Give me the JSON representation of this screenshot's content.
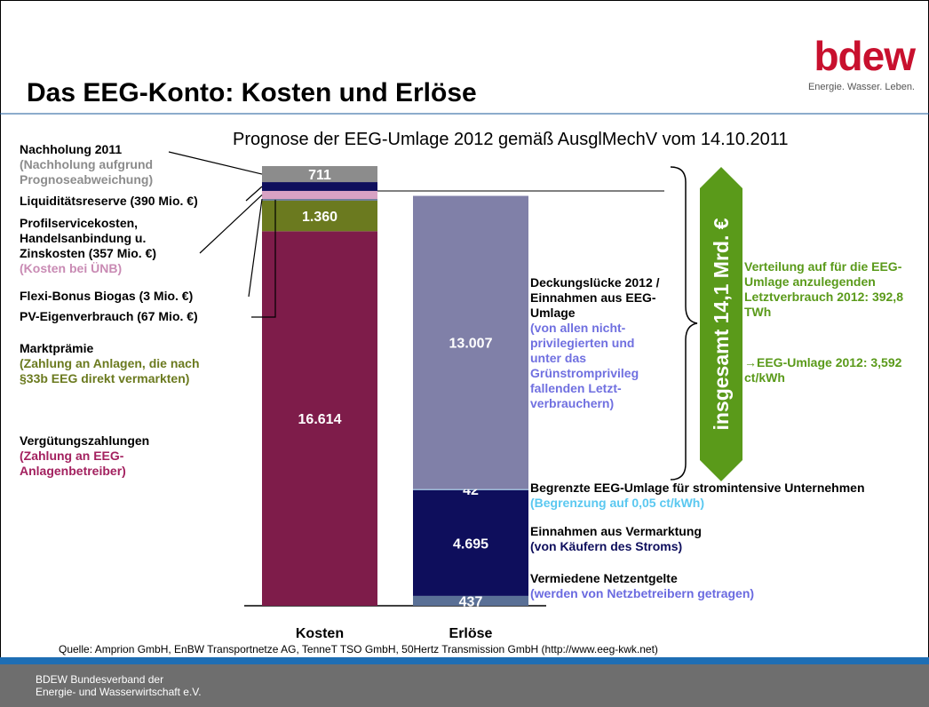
{
  "header": {
    "title": "Das EEG-Konto: Kosten und Erlöse",
    "logo": "bdew",
    "tagline": "Energie. Wasser. Leben."
  },
  "chart_data": {
    "type": "stacked-bar",
    "subtitle": "Prognose der EEG-Umlage 2012 gemäß AusglMechV vom 14.10.2011",
    "categories": [
      "Kosten",
      "Erlöse"
    ],
    "series": [
      {
        "name": "Vergütungszahlungen",
        "note": "(Zahlung an EEG-Anlagenbetreiber)",
        "color": "#7e1c4a",
        "note_color": "#a3215f",
        "values": [
          16614,
          null
        ],
        "value_labels": [
          "16.614",
          null
        ]
      },
      {
        "name": "Marktprämie",
        "note": "(Zahlung an Anlagen, die nach §33b EEG direkt vermarkten)",
        "color": "#6b7a1f",
        "note_color": "#6b7a1f",
        "values": [
          1360,
          null
        ],
        "value_labels": [
          "1.360",
          null
        ]
      },
      {
        "name": "PV-Eigenverbrauch (67 Mio. €)",
        "color": "#5a7096",
        "values": [
          67,
          null
        ]
      },
      {
        "name": "Flexi-Bonus Biogas (3 Mio. €)",
        "color": "#d4b483",
        "values": [
          3,
          null
        ]
      },
      {
        "name": "Profilservicekosten, Handelsanbindung u. Zinskosten (357 Mio. €)",
        "note": "(Kosten bei ÜNB)",
        "color": "#d8a2c4",
        "note_color": "#c98bb4",
        "values": [
          357,
          null
        ]
      },
      {
        "name": "Liquiditätsreserve (390 Mio. €)",
        "color": "#0e0e5c",
        "values": [
          390,
          null
        ]
      },
      {
        "name": "Nachholung 2011",
        "note": "(Nachholung aufgrund Prognoseabweichung)",
        "color": "#8c8c8c",
        "note_color": "#8c8c8c",
        "values": [
          711,
          null
        ],
        "value_labels": [
          "711",
          null
        ]
      },
      {
        "name": "Vermiedene Netzentgelte",
        "note": "(werden von Netzbetreibern getragen)",
        "color": "#5a7096",
        "note_color": "#6a6ae0",
        "values": [
          null,
          437
        ],
        "value_labels": [
          null,
          "437"
        ]
      },
      {
        "name": "Einnahmen aus Vermarktung",
        "note": "(von Käufern des Stroms)",
        "color": "#0e0e5c",
        "note_color": "#0e0e5c",
        "values": [
          null,
          4695
        ],
        "value_labels": [
          null,
          "4.695"
        ]
      },
      {
        "name": "Begrenzte EEG-Umlage für stromintensive Unternehmen",
        "note": "(Begrenzung auf 0,05 ct/kWh)",
        "color": "#9cc8e8",
        "note_color": "#5ac8f0",
        "values": [
          null,
          42
        ],
        "value_labels": [
          null,
          "42"
        ]
      },
      {
        "name": "Deckungslücke 2012 / Einnahmen aus EEG-Umlage",
        "note": "(von allen nicht-privilegierten und unter das Grünstromprivileg fallenden Letzt-verbrauchern)",
        "color": "#8080a8",
        "note_color": "#7070e0",
        "values": [
          null,
          13007
        ],
        "value_labels": [
          null,
          "13.007"
        ]
      }
    ],
    "annotations": {
      "total": "insgesamt 14,1 Mrd. €",
      "distribution": "Verteilung auf für die EEG-Umlage anzulegenden Letztverbrauch 2012: 392,8 TWh",
      "levy": "→EEG-Umlage 2012: 3,592 ct/kWh"
    },
    "source": "Quelle: Amprion GmbH, EnBW Transportnetze AG, TenneT TSO GmbH, 50Hertz Transmission GmbH (http://www.eeg-kwk.net)"
  },
  "footer": {
    "line1": "BDEW Bundesverband der",
    "line2": "Energie- und Wasserwirtschaft e.V."
  }
}
